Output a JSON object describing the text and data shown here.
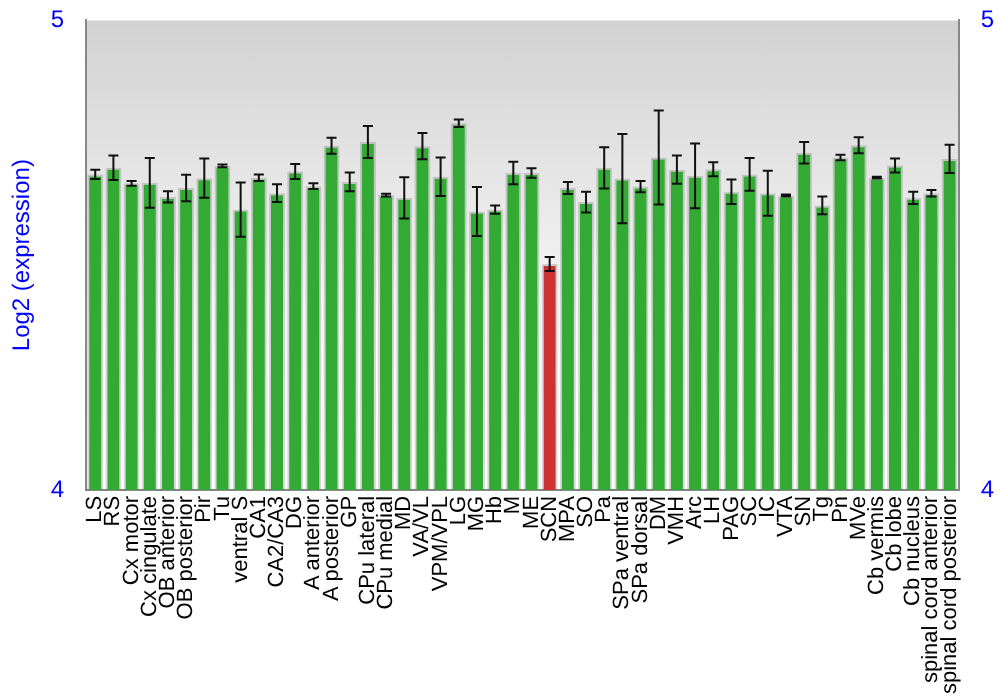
{
  "chart_data": {
    "type": "bar",
    "ylabel": "Log2 (expression)",
    "categories": [
      "LS",
      "RS",
      "Cx motor",
      "Cx cingulate",
      "OB anterior",
      "OB posterior",
      "Pir",
      "Tu",
      "ventral S",
      "CA1",
      "CA2/CA3",
      "DG",
      "A anterior",
      "A posterior",
      "GP",
      "CPu lateral",
      "CPu medial",
      "MD",
      "VA/VL",
      "VPM/VPL",
      "LG",
      "MG",
      "Hb",
      "M",
      "ME",
      "SCN",
      "MPA",
      "SO",
      "Pa",
      "SPa ventral",
      "SPa dorsal",
      "DM",
      "VMH",
      "Arc",
      "LH",
      "PAG",
      "SC",
      "IC",
      "VTA",
      "SN",
      "Tg",
      "Pn",
      "MVe",
      "Cb vermis",
      "Cb lobe",
      "Cb nucleus",
      "spinal cord anterior",
      "spinal cord posterior"
    ],
    "values": [
      4.672,
      4.686,
      4.653,
      4.654,
      4.624,
      4.643,
      4.664,
      4.69,
      4.597,
      4.665,
      4.632,
      4.678,
      4.647,
      4.733,
      4.656,
      4.741,
      4.628,
      4.622,
      4.732,
      4.667,
      4.781,
      4.593,
      4.597,
      4.675,
      4.675,
      4.481,
      4.643,
      4.613,
      4.686,
      4.663,
      4.646,
      4.708,
      4.682,
      4.669,
      4.683,
      4.635,
      4.672,
      4.632,
      4.627,
      4.718,
      4.606,
      4.708,
      4.734,
      4.665,
      4.691,
      4.622,
      4.632,
      4.705
    ],
    "errors": [
      0.01,
      0.026,
      0.005,
      0.053,
      0.012,
      0.028,
      0.042,
      0.003,
      0.058,
      0.007,
      0.019,
      0.016,
      0.006,
      0.017,
      0.02,
      0.034,
      0.003,
      0.044,
      0.028,
      0.041,
      0.008,
      0.052,
      0.009,
      0.024,
      0.01,
      0.015,
      0.013,
      0.022,
      0.044,
      0.095,
      0.012,
      0.1,
      0.03,
      0.069,
      0.015,
      0.026,
      0.035,
      0.048,
      0.002,
      0.023,
      0.019,
      0.006,
      0.017,
      0.002,
      0.015,
      0.013,
      0.007,
      0.03
    ],
    "colors": [
      "#33aa33",
      "#33aa33",
      "#33aa33",
      "#33aa33",
      "#33aa33",
      "#33aa33",
      "#33aa33",
      "#33aa33",
      "#33aa33",
      "#33aa33",
      "#33aa33",
      "#33aa33",
      "#33aa33",
      "#33aa33",
      "#33aa33",
      "#33aa33",
      "#33aa33",
      "#33aa33",
      "#33aa33",
      "#33aa33",
      "#33aa33",
      "#33aa33",
      "#33aa33",
      "#33aa33",
      "#33aa33",
      "#cc3333",
      "#33aa33",
      "#33aa33",
      "#33aa33",
      "#33aa33",
      "#33aa33",
      "#33aa33",
      "#33aa33",
      "#33aa33",
      "#33aa33",
      "#33aa33",
      "#33aa33",
      "#33aa33",
      "#33aa33",
      "#33aa33",
      "#33aa33",
      "#33aa33",
      "#33aa33",
      "#33aa33",
      "#33aa33",
      "#33aa33",
      "#33aa33",
      "#33aa33"
    ],
    "ylim": [
      4,
      5
    ],
    "yticks": [
      4,
      5
    ],
    "y2lim": [
      4,
      5
    ],
    "y2ticks": [
      4,
      5
    ],
    "grid": false,
    "legend": false
  }
}
